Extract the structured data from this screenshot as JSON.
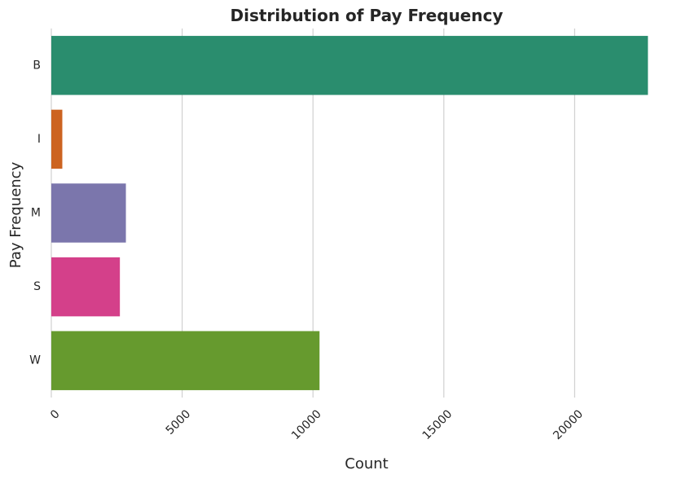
{
  "chart_data": {
    "type": "bar",
    "orientation": "horizontal",
    "title": "Distribution of Pay Frequency",
    "xlabel": "Count",
    "ylabel": "Pay Frequency",
    "categories": [
      "B",
      "I",
      "M",
      "S",
      "W"
    ],
    "values": [
      22800,
      420,
      2850,
      2620,
      10250
    ],
    "colors": [
      "#2a8d6e",
      "#cc6320",
      "#7b76ac",
      "#d4408a",
      "#669a2e"
    ],
    "xlim": [
      0,
      23100
    ],
    "xticks": [
      0,
      5000,
      10000,
      15000,
      20000
    ],
    "xtick_labels": [
      "0",
      "5000",
      "10000",
      "15000",
      "20000"
    ],
    "xtick_rotation": 45,
    "grid": "vertical",
    "legend": "none"
  }
}
